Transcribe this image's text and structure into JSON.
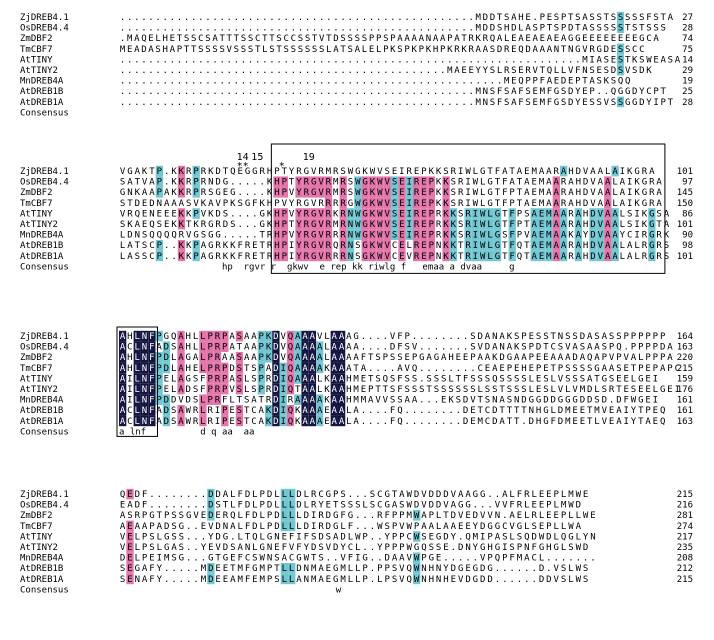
{
  "colors": {
    "identical": "#141541",
    "high": "#e475ab",
    "medium": "#72c7d3",
    "text_dark": "#000000",
    "text_light": "#ffffff"
  },
  "names": [
    "ZjDREB4.1",
    "OsDREB4.4",
    "ZmDBF2",
    "TmCBF7",
    "AtTINY",
    "AtTINY2",
    "MnDREB4A",
    "AtDREB1B",
    "AtDREB1A",
    "Consensus"
  ],
  "markers": [
    {
      "label": "14",
      "after_block": 1,
      "col": 16
    },
    {
      "label": "15",
      "after_block": 1,
      "col": 18
    },
    {
      "label": "19",
      "after_block": 1,
      "col": 25
    }
  ],
  "marker_stars": "**     *",
  "blocks": [
    {
      "rows": [
        {
          "seq": "..................................................MDDTSAHE.PESPTSASSTSSSSSFSTA",
          "end": "27"
        },
        {
          "seq": "..................................................MDDSHDLASPTSPDTASSSSSTSTSSS",
          "end": "28"
        },
        {
          "seq": ".MAQELHETSSCSATTTSSCTTSCCSSTVTDSSSSPPSPAAAANAAPATRKRQALEAEAEAEAGGEEEEEEEEGCA",
          "end": "74"
        },
        {
          "seq": "MEADASHAPTTSSSSVSSSTLSTSSSSSSLATSALELPKSPKPKHPKRKRAASDREQDAAANTNGVRGDESSCC",
          "end": "75"
        },
        {
          "seq": ".................................................................MIASESTKSWEASA",
          "end": "14"
        },
        {
          "seq": "..............................................MAEEYYSLRSERVTQLLVFNSESDSVSDK",
          "end": "29"
        },
        {
          "seq": "......................................................MEQPPFAEDEPTASKSQQ",
          "end": "19"
        },
        {
          "seq": "..................................................MNSFSAFSEMFGSDYEP..QGGDYCPT",
          "end": "25"
        },
        {
          "seq": "..................................................MNSFSAFSEMFGSDYESSVSSGGDYIPT",
          "end": "28"
        }
      ],
      "consensus": ""
    },
    {
      "rows": [
        {
          "seq": "VGAKTP.KKRPRKDTQEGGRHPTYRGVRMRSWGKWVSEIREPKKSRIWLGTFATAEMAARAHDVAALAIKGRA",
          "end": "101"
        },
        {
          "seq": "SATVAP.KKRPRNDG.....KHPTYRGVRMRSWGKWVSEIREPKKSRIWLGTFATAEMAARAHDVAALAIKGRA",
          "end": "97"
        },
        {
          "seq": "GNKAAPAKKRPRSGEG....KHPVYRGVRMRSWGKWVSEIREPKKSRIWLGTFPTAEMAARAHDVAALAIKGRA",
          "end": "145"
        },
        {
          "seq": "STDEDNAAASVKAVPKSGFKHPVYRGVRRRRGWGKWVSEIREPKKSRIWLGTFPTAEMAARAHDVAALAIKGRA",
          "end": "150"
        },
        {
          "seq": "VRQENEEEKKPVKDS....GKHPVYRGVRKRNWGKWVSEIREPRKKSRIWLGTFPSAEMAARAHDVAALSIKGSA",
          "end": "86"
        },
        {
          "seq": "SKAEQSEKKTKRGRDS...GKHPTYRGVRMRNWGKWVSEIREPRKKSRIWLGTFPTAEMAARAHDVAALSIKGTA",
          "end": "101"
        },
        {
          "seq": "LDNSQQQQRVGSGG.....TRHPVYRGVRRRNWGKWVSEIREPRKKSRIWLGSFPVAEMAAKAYDVAAYCIRGRK",
          "end": "90"
        },
        {
          "seq": "LATSCP..KKPAGRKKFRETRHPIYRGVRQRNSGKWVCELREPNKKTRIWLGTFQTAEMAARAHDVAALALRGRS",
          "end": "98"
        },
        {
          "seq": "LASSCP..KKPAGRKKFRETRHPIYRGVRRRNSGKWVCEVREPNKKTRIWLGTFQTAEMAARAHDVAALALRGRS",
          "end": "101"
        }
      ],
      "consensus": "                   hp  rgvr r  gkwv  e rep kk riwlg f   emaa a dvaa     g   "
    },
    {
      "rows": [
        {
          "seq": "AHLNFPGQAHLLPRPASAAPKDVQAAAVLAAAG....VFP........SDANAKSPESSTNSSDASASSPPPPPP",
          "end": "164"
        },
        {
          "seq": "ACLNFADSAHLLPRPATAAPKDVQAAAALAAAA....DFSV.......SVDANAKSPDTCSVASAASPQ.PPPPDA",
          "end": "163"
        },
        {
          "seq": "AHLNFPDLAGALPRAASAAPKDVQAAAALAAAAFTSPSSEPGAGAHEEPAAKDGAAPEEAAADAQAPVPVALPPPA",
          "end": "220"
        },
        {
          "seq": "AHLNFPDLAHELPRPDSTSPADIQAAAAKAAATA....AVQ........CEAEPEHEPETPSSSSGAASETPEPAPC",
          "end": "215"
        },
        {
          "seq": "AILNFPELAGSFPRPASLSPRDIQAAALKAAHMETSQSFSS.SSSLTFSSSQSSSSLESLVSSSATGSEELGEI",
          "end": "159"
        },
        {
          "seq": "AILNFPELADSFPRPVSLSPRDIQTAALKAAHMEPTTSFSSSTSSSSSSLSSTSSSLESLVLVMDLSRTESEELGEI",
          "end": "176"
        },
        {
          "seq": "AILNFPDDVDSLPRFLTSATRDIRAAAAKAAHMMAVVSSAA...EKSDVTSNASNDGGDDGGGDDSD.DFWGEI",
          "end": "161"
        },
        {
          "seq": "ACLNFADSAWRLRIPESTCAKDIQKAAAEAALA....FQ........DETCDTTTTNHGLDMEETMVEAIYTPEQ",
          "end": "161"
        },
        {
          "seq": "ACLNFADSAWRLRIPESTCAKDIQKAAAEAALA....FQ........DEMCDATT.DHGFDMEETLVEAIYTAEQ",
          "end": "163"
        }
      ],
      "consensus": "a lnf          d q aa  aa                                                 "
    },
    {
      "rows": [
        {
          "seq": "QEDF........DDALFDLPDLLLDLRCGPS...SCGTAWDVDDDVAAGG..ALFRLEEPLMWE",
          "end": "215"
        },
        {
          "seq": "EADF........DSTLFDLPDLLLDLRYETSSSLSCGASWDVDDVAGG...VVFRLEEPLMWD",
          "end": "216"
        },
        {
          "seq": "ASRPGTPSSGVEDERQLFDLPDLLLDIRDGFG...RFPPMWAPLTDVEDVVN.AELRLEEPLLWE",
          "end": "281"
        },
        {
          "seq": "AEAAPADSG..EVDNALFDLPDLLLDIRDGLF...WSPVWPAALAAEEYDGGCVGLSEPLLWA",
          "end": "274"
        },
        {
          "seq": "VELPSLGSS...YDG.LTQLGNEFIFSDSADLWP..YPPCWSEGDY.QMIPASLSQDWDLQGLYN",
          "end": "217"
        },
        {
          "seq": "VELPSLGAS..YEVDSANLGNEFVFYDSVDYCL..YPPPWGQSSE.DNYGHGISPNFGHGLSWD",
          "end": "235"
        },
        {
          "seq": "DELPEIMSG...GTGEFCSWNSACGWTS..VFIG..DAAVWPGE.....VPQPFMACL.......",
          "end": "208"
        },
        {
          "seq": "SEGAFY.....MDEETMFGMPTLLDNMAEGMLLP.PPSVQWNHNYDGEGDG......D.VSLWS",
          "end": "212"
        },
        {
          "seq": "SENAFY.....MDEEAMFEMPSLLANMAEGMLLP.LPSVQWNHNHEVDGDD......DDVSLWS",
          "end": "215"
        }
      ],
      "consensus": "                                        w                       "
    }
  ]
}
